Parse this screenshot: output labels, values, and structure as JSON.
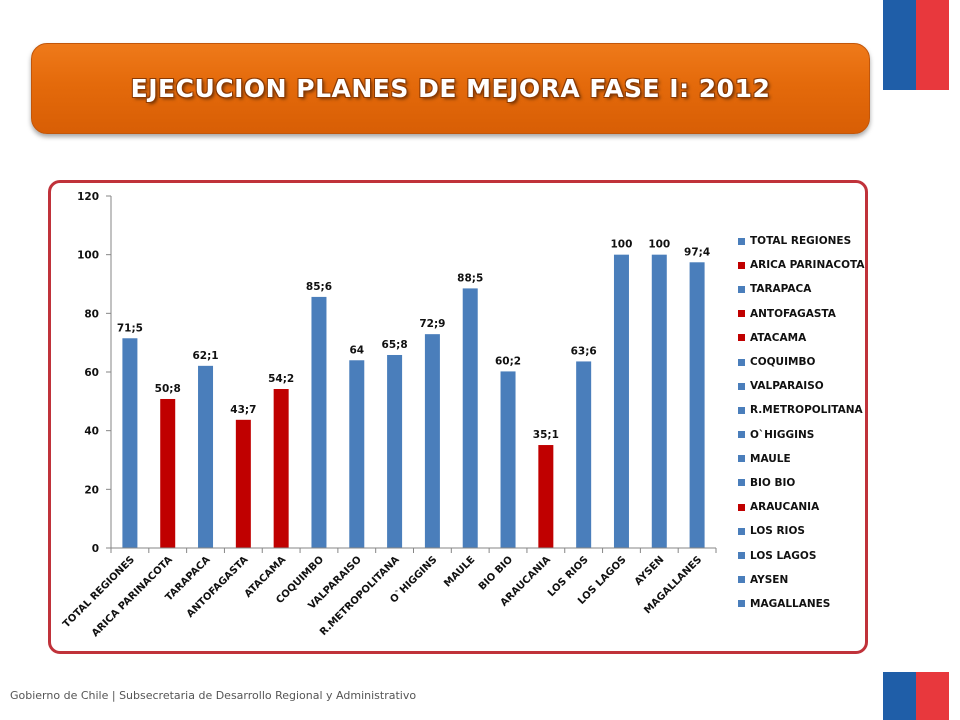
{
  "header": {
    "title": "EJECUCION PLANES DE MEJORA FASE I: 2012"
  },
  "colors": {
    "banner_orange": "#e46a0b",
    "frame_red": "#c0323a",
    "bar_blue": "#4a7ebb",
    "bar_red": "#c00000",
    "flag_blue": "#1f5ea8",
    "flag_red": "#e8383d"
  },
  "chart_data": {
    "type": "bar",
    "title": "",
    "xlabel": "",
    "ylabel": "",
    "ylim": [
      0,
      120
    ],
    "yticks": [
      "0",
      "20",
      "40",
      "60",
      "80",
      "100",
      "120"
    ],
    "grid": false,
    "legend_position": "right",
    "categories": [
      "TOTAL REGIONES",
      "ARICA PARINACOTA",
      "TARAPACA",
      "ANTOFAGASTA",
      "ATACAMA",
      "COQUIMBO",
      "VALPARAISO",
      "R.METROPOLITANA",
      "O`HIGGINS",
      "MAULE",
      "BIO BIO",
      "ARAUCANIA",
      "LOS RIOS",
      "LOS LAGOS",
      "AYSEN",
      "MAGALLANES"
    ],
    "values": [
      71.5,
      50.8,
      62.1,
      43.7,
      54.2,
      85.6,
      64,
      65.8,
      72.9,
      88.5,
      60.2,
      35.1,
      63.6,
      100,
      100,
      97.4
    ],
    "data_labels": [
      "71;5",
      "50;8",
      "62;1",
      "43;7",
      "54;2",
      "85;6",
      "64",
      "65;8",
      "72;9",
      "88;5",
      "60;2",
      "35;1",
      "63;6",
      "100",
      "100",
      "97;4"
    ],
    "bar_colors": [
      "#4a7ebb",
      "#c00000",
      "#4a7ebb",
      "#c00000",
      "#c00000",
      "#4a7ebb",
      "#4a7ebb",
      "#4a7ebb",
      "#4a7ebb",
      "#4a7ebb",
      "#4a7ebb",
      "#c00000",
      "#4a7ebb",
      "#4a7ebb",
      "#4a7ebb",
      "#4a7ebb"
    ],
    "legend": [
      "TOTAL REGIONES",
      "ARICA PARINACOTA",
      "TARAPACA",
      "ANTOFAGASTA",
      "ATACAMA",
      "COQUIMBO",
      "VALPARAISO",
      "R.METROPOLITANA",
      "O`HIGGINS",
      "MAULE",
      "BIO BIO",
      "ARAUCANIA",
      "LOS RIOS",
      "LOS LAGOS",
      "AYSEN",
      "MAGALLANES"
    ]
  },
  "footer": {
    "text": "Gobierno de Chile | Subsecretaria de Desarrollo Regional y Administrativo"
  }
}
